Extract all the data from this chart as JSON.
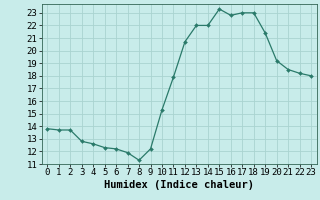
{
  "title": "",
  "xlabel": "Humidex (Indice chaleur)",
  "ylabel": "",
  "x": [
    0,
    1,
    2,
    3,
    4,
    5,
    6,
    7,
    8,
    9,
    10,
    11,
    12,
    13,
    14,
    15,
    16,
    17,
    18,
    19,
    20,
    21,
    22,
    23
  ],
  "y": [
    13.8,
    13.7,
    13.7,
    12.8,
    12.6,
    12.3,
    12.2,
    11.9,
    11.3,
    12.2,
    15.3,
    17.9,
    20.7,
    22.0,
    22.0,
    23.3,
    22.8,
    23.0,
    23.0,
    21.4,
    19.2,
    18.5,
    18.2,
    18.0
  ],
  "xlim": [
    -0.5,
    23.5
  ],
  "ylim": [
    11,
    23.7
  ],
  "yticks": [
    11,
    12,
    13,
    14,
    15,
    16,
    17,
    18,
    19,
    20,
    21,
    22,
    23
  ],
  "xticks": [
    0,
    1,
    2,
    3,
    4,
    5,
    6,
    7,
    8,
    9,
    10,
    11,
    12,
    13,
    14,
    15,
    16,
    17,
    18,
    19,
    20,
    21,
    22,
    23
  ],
  "line_color": "#2a7a6a",
  "marker_color": "#2a7a6a",
  "bg_color": "#c8ecea",
  "grid_color": "#aad4d0",
  "axis_label_fontsize": 7.5,
  "tick_fontsize": 6.5
}
